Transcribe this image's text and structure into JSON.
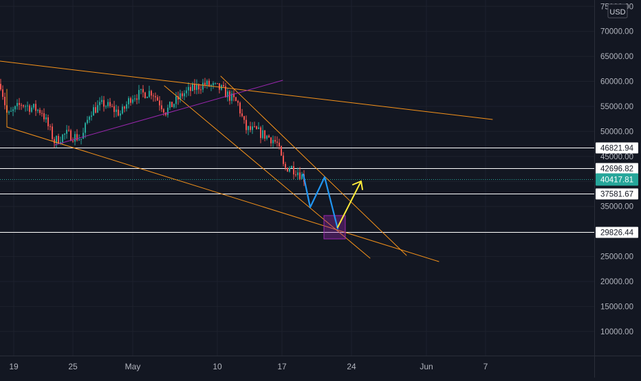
{
  "chart_data": {
    "type": "candlestick",
    "symbol": "",
    "currency_badge": "USD",
    "ylim": [
      2500,
      75500
    ],
    "x_ticks": [
      "19",
      "25",
      "May",
      "10",
      "17",
      "24",
      "Jun",
      "7"
    ],
    "y_ticks": [
      10000,
      15000,
      20000,
      25000,
      30000,
      35000,
      40000,
      45000,
      50000,
      55000,
      60000,
      65000,
      70000,
      75000
    ],
    "y_tick_labels": [
      "10000.00",
      "15000.00",
      "20000.00",
      "25000.00",
      "30000.00",
      "35000.00",
      "40000.00",
      "45000.00",
      "50000.00",
      "55000.00",
      "60000.00",
      "65000.00",
      "70000.00",
      "75000.00"
    ],
    "horizontal_levels": [
      {
        "value": 46821.94,
        "label": "46821.94"
      },
      {
        "value": 42696.82,
        "label": "42696.82"
      },
      {
        "value": 37581.67,
        "label": "37581.67"
      },
      {
        "value": 29826.44,
        "label": "29826.44"
      }
    ],
    "last_price": {
      "value": 40417.81,
      "label": "40417.81"
    },
    "grid": true,
    "colors": {
      "background": "#131722",
      "up": "#26a69a",
      "down": "#ef5350",
      "trendline": "#f7931a",
      "channel_purple": "#9c27b0",
      "projection_blue": "#2196f3",
      "projection_yellow": "#ffeb3b",
      "last_price_badge": "#26a69a"
    }
  }
}
